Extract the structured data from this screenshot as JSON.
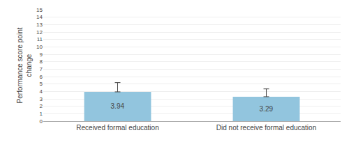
{
  "chart_data": {
    "type": "bar",
    "ylabel": "Performance score point\nchange",
    "categories": [
      "Received formal education",
      "Did not receive formal education"
    ],
    "values": [
      3.94,
      3.29
    ],
    "errors": [
      1.25,
      1.05
    ],
    "color": "#92C5DE",
    "ylim": [
      0,
      15
    ],
    "yticks": [
      0,
      1,
      2,
      3,
      4,
      5,
      6,
      7,
      8,
      9,
      10,
      11,
      12,
      13,
      14,
      15
    ],
    "grid": true,
    "data_labels": true
  }
}
